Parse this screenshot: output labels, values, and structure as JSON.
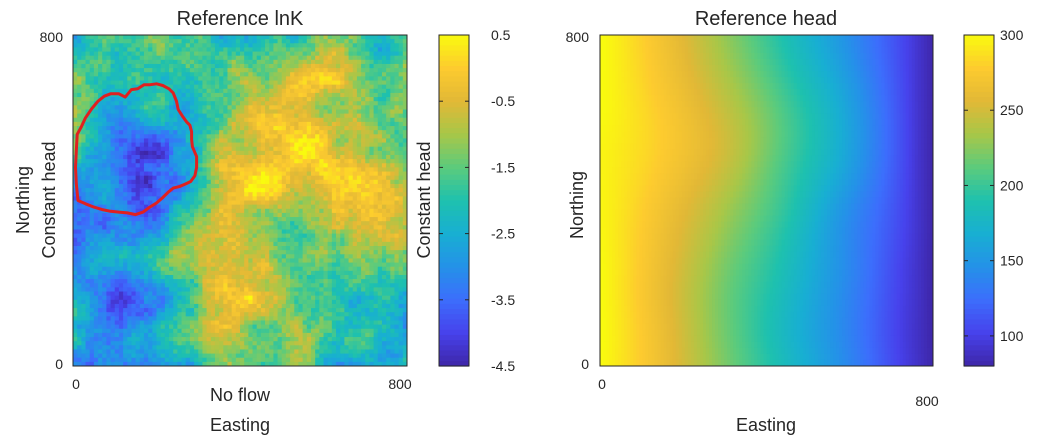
{
  "chart_data": [
    {
      "type": "heatmap",
      "title": "Reference lnK",
      "xlabel": "Easting",
      "ylabel": "Northing",
      "xlim": [
        0,
        800
      ],
      "ylim": [
        0,
        800
      ],
      "x_tick_labels": [
        "0",
        "800"
      ],
      "y_tick_labels": [
        "0",
        "800"
      ],
      "colormap": "parula",
      "color_range": [
        -4.5,
        0.5
      ],
      "colorbar_ticks": [
        0.5,
        -0.5,
        -1.5,
        -2.5,
        -3.5,
        -4.5
      ],
      "colorbar_tick_labels": [
        "0.5",
        "-0.5",
        "-1.5",
        "-2.5",
        "-3.5",
        "-4.5"
      ],
      "annotations": {
        "left_boundary": "Constant head",
        "right_boundary": "Constant head",
        "bottom_boundary": "No flow"
      },
      "outline_color": "#e02020",
      "outline_polygon": [
        [
          10,
          560
        ],
        [
          20,
          578
        ],
        [
          30,
          600
        ],
        [
          45,
          622
        ],
        [
          60,
          640
        ],
        [
          75,
          652
        ],
        [
          90,
          658
        ],
        [
          110,
          658
        ],
        [
          125,
          650
        ],
        [
          140,
          668
        ],
        [
          155,
          670
        ],
        [
          170,
          680
        ],
        [
          185,
          680
        ],
        [
          200,
          682
        ],
        [
          215,
          678
        ],
        [
          230,
          670
        ],
        [
          240,
          660
        ],
        [
          248,
          640
        ],
        [
          252,
          620
        ],
        [
          262,
          604
        ],
        [
          272,
          590
        ],
        [
          280,
          582
        ],
        [
          284,
          566
        ],
        [
          284,
          548
        ],
        [
          286,
          530
        ],
        [
          296,
          506
        ],
        [
          296,
          480
        ],
        [
          292,
          460
        ],
        [
          282,
          446
        ],
        [
          270,
          440
        ],
        [
          256,
          434
        ],
        [
          240,
          430
        ],
        [
          228,
          420
        ],
        [
          214,
          406
        ],
        [
          200,
          394
        ],
        [
          184,
          384
        ],
        [
          168,
          372
        ],
        [
          150,
          366
        ],
        [
          130,
          370
        ],
        [
          110,
          372
        ],
        [
          90,
          374
        ],
        [
          70,
          378
        ],
        [
          50,
          384
        ],
        [
          30,
          392
        ],
        [
          12,
          400
        ],
        [
          8,
          440
        ],
        [
          6,
          480
        ],
        [
          8,
          520
        ]
      ]
    },
    {
      "type": "heatmap",
      "title": "Reference head",
      "xlabel": "Easting",
      "ylabel": "Northing",
      "xlim": [
        0,
        800
      ],
      "ylim": [
        0,
        800
      ],
      "x_tick_labels": [
        "0",
        "800"
      ],
      "y_tick_labels": [
        "0",
        "800"
      ],
      "colormap": "parula",
      "color_range": [
        80,
        300
      ],
      "colorbar_ticks": [
        300,
        250,
        200,
        150,
        100
      ],
      "colorbar_tick_labels": [
        "300",
        "250",
        "200",
        "150",
        "100"
      ],
      "trend": "head decreases from west (~300) to east (~80)"
    }
  ]
}
